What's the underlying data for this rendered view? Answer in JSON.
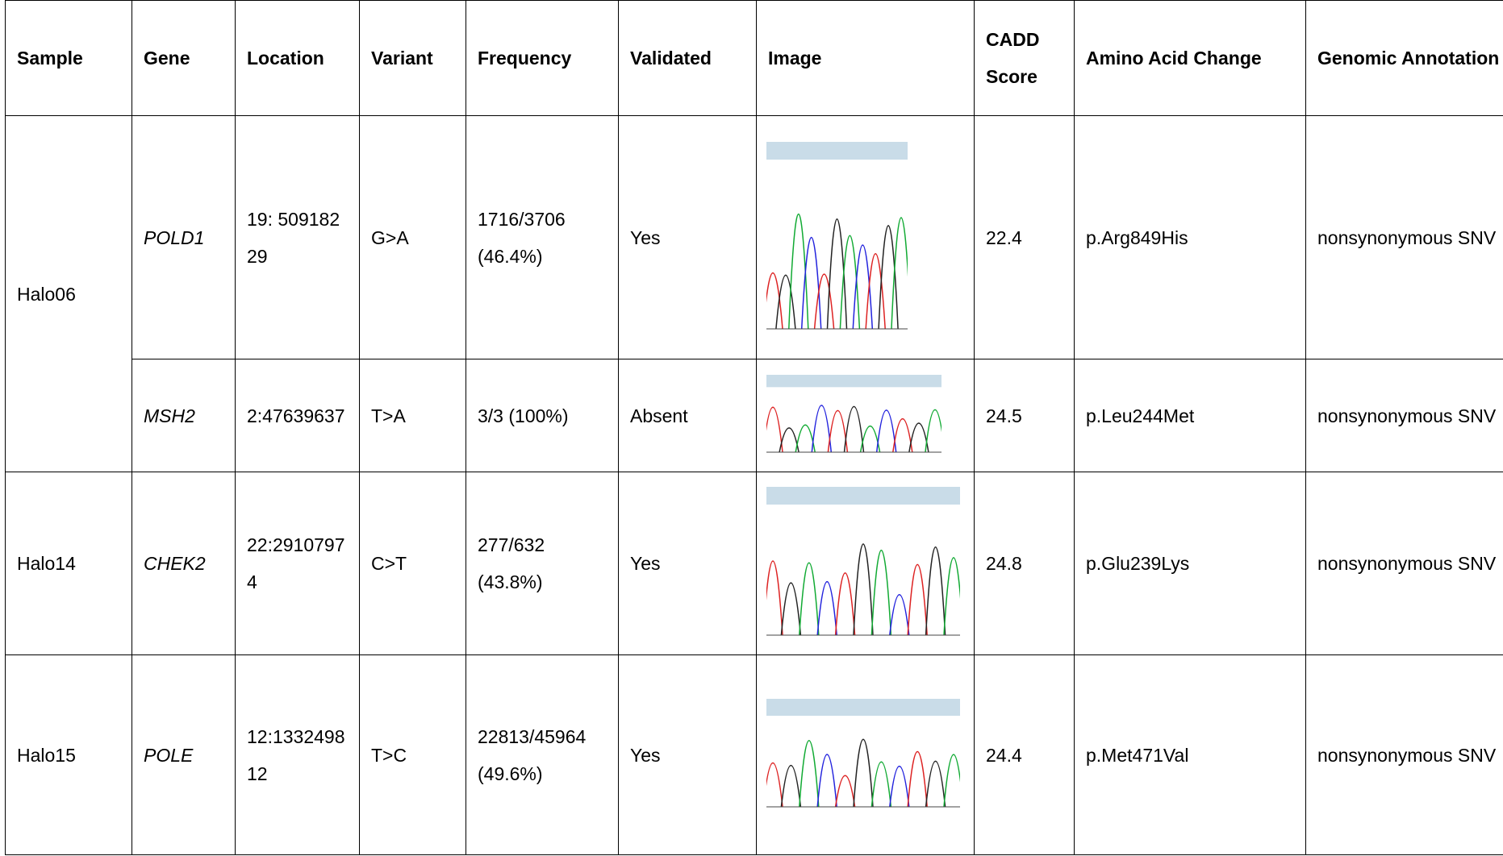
{
  "table": {
    "header": [
      "Sample",
      "Gene",
      "Location",
      "Variant",
      "Frequency",
      "Validated",
      "Image",
      "CADD Score",
      "Amino Acid Change",
      "Genomic Annotation"
    ],
    "rows": [
      {
        "sample": "Halo06",
        "gene": "POLD1",
        "location": "19: 50918229",
        "variant": "G>A",
        "frequency": "1716/3706 (46.4%)",
        "validated": "Yes",
        "cadd": 22.4,
        "aa_change": "p.Arg849His",
        "annotation": "nonsynonymous SNV"
      },
      {
        "gene": "MSH2",
        "location": "2:47639637",
        "variant": "T>A",
        "frequency": "3/3 (100%)",
        "validated": "Absent",
        "cadd": 24.5,
        "aa_change": "p.Leu244Met",
        "annotation": "nonsynonymous SNV"
      },
      {
        "sample": "Halo14",
        "gene": "CHEK2",
        "location": "22:29107974",
        "variant": "C>T",
        "frequency": "277/632 (43.8%)",
        "validated": "Yes",
        "cadd": 24.8,
        "aa_change": "p.Glu239Lys",
        "annotation": "nonsynonymous SNV"
      },
      {
        "sample": "Halo15",
        "gene": "POLE",
        "location": "12:133249812",
        "variant": "T>C",
        "frequency": "22813/45964 (49.6%)",
        "validated": "Yes",
        "cadd": 24.4,
        "aa_change": "p.Met471Val",
        "annotation": "nonsynonymous SNV"
      }
    ]
  }
}
